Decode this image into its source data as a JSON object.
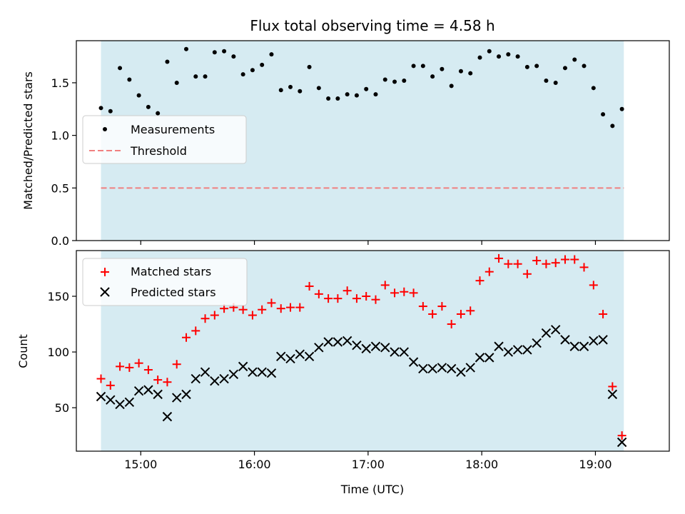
{
  "colors": {
    "shade": "#add8e6",
    "measurement": "#000000",
    "threshold": "#f08080",
    "matched": "#ff0000",
    "predicted": "#000000"
  },
  "chart_data": [
    {
      "type": "scatter",
      "title": "Flux total observing time = 4.58 h",
      "xlabel": "",
      "ylabel": "Matched/Predicted stars",
      "ylim": [
        0,
        1.9
      ],
      "yticks": [
        0.0,
        0.5,
        1.0,
        1.5
      ],
      "ytick_labels": [
        "0.0",
        "0.5",
        "1.0",
        "1.5"
      ],
      "shaded_span": [
        "14:39",
        "19:15"
      ],
      "legend_position": "center-left",
      "series": [
        {
          "name": "Measurements",
          "marker": "dot",
          "x": [
            "14:39",
            "14:44",
            "14:49",
            "14:54",
            "14:59",
            "15:04",
            "15:09",
            "15:14",
            "15:19",
            "15:24",
            "15:29",
            "15:34",
            "15:39",
            "15:44",
            "15:49",
            "15:54",
            "15:59",
            "16:04",
            "16:09",
            "16:14",
            "16:19",
            "16:24",
            "16:29",
            "16:34",
            "16:39",
            "16:44",
            "16:49",
            "16:54",
            "16:59",
            "17:04",
            "17:09",
            "17:14",
            "17:19",
            "17:24",
            "17:29",
            "17:34",
            "17:39",
            "17:44",
            "17:49",
            "17:54",
            "17:59",
            "18:04",
            "18:09",
            "18:14",
            "18:19",
            "18:24",
            "18:29",
            "18:34",
            "18:39",
            "18:44",
            "18:49",
            "18:54",
            "18:59",
            "19:04",
            "19:09",
            "19:14"
          ],
          "y": [
            1.26,
            1.23,
            1.64,
            1.53,
            1.38,
            1.27,
            1.21,
            1.7,
            1.5,
            1.82,
            1.56,
            1.56,
            1.79,
            1.8,
            1.75,
            1.58,
            1.62,
            1.67,
            1.77,
            1.43,
            1.46,
            1.42,
            1.65,
            1.45,
            1.35,
            1.35,
            1.39,
            1.38,
            1.44,
            1.39,
            1.53,
            1.51,
            1.52,
            1.66,
            1.66,
            1.56,
            1.63,
            1.47,
            1.61,
            1.59,
            1.74,
            1.8,
            1.75,
            1.77,
            1.75,
            1.65,
            1.66,
            1.52,
            1.5,
            1.64,
            1.72,
            1.66,
            1.45,
            1.2,
            1.09,
            1.25
          ]
        },
        {
          "name": "Threshold",
          "style": "dashed",
          "y": 0.5
        }
      ]
    },
    {
      "type": "scatter",
      "title": "",
      "xlabel": "Time (UTC)",
      "ylabel": "Count",
      "ylim": [
        11,
        191
      ],
      "yticks": [
        50,
        100,
        150
      ],
      "ytick_labels": [
        "50",
        "100",
        "150"
      ],
      "xticks": [
        "15:00",
        "16:00",
        "17:00",
        "18:00",
        "19:00"
      ],
      "xlim": [
        "14:26",
        "19:39"
      ],
      "legend_position": "upper-left",
      "series": [
        {
          "name": "Matched stars",
          "marker": "plus",
          "x": [
            "14:39",
            "14:44",
            "14:49",
            "14:54",
            "14:59",
            "15:04",
            "15:09",
            "15:14",
            "15:19",
            "15:24",
            "15:29",
            "15:34",
            "15:39",
            "15:44",
            "15:49",
            "15:54",
            "15:59",
            "16:04",
            "16:09",
            "16:14",
            "16:19",
            "16:24",
            "16:29",
            "16:34",
            "16:39",
            "16:44",
            "16:49",
            "16:54",
            "16:59",
            "17:04",
            "17:09",
            "17:14",
            "17:19",
            "17:24",
            "17:29",
            "17:34",
            "17:39",
            "17:44",
            "17:49",
            "17:54",
            "17:59",
            "18:04",
            "18:09",
            "18:14",
            "18:19",
            "18:24",
            "18:29",
            "18:34",
            "18:39",
            "18:44",
            "18:49",
            "18:54",
            "18:59",
            "19:04",
            "19:09",
            "19:14"
          ],
          "y": [
            76,
            70,
            87,
            86,
            90,
            84,
            75,
            73,
            89,
            113,
            119,
            130,
            133,
            139,
            140,
            138,
            133,
            138,
            144,
            139,
            140,
            140,
            159,
            152,
            148,
            148,
            155,
            148,
            150,
            147,
            160,
            153,
            154,
            153,
            141,
            134,
            141,
            125,
            134,
            137,
            164,
            172,
            184,
            179,
            179,
            170,
            182,
            179,
            180,
            183,
            183,
            176,
            160,
            134,
            69,
            25
          ]
        },
        {
          "name": "Predicted stars",
          "marker": "x",
          "x": [
            "14:39",
            "14:44",
            "14:49",
            "14:54",
            "14:59",
            "15:04",
            "15:09",
            "15:14",
            "15:19",
            "15:24",
            "15:29",
            "15:34",
            "15:39",
            "15:44",
            "15:49",
            "15:54",
            "15:59",
            "16:04",
            "16:09",
            "16:14",
            "16:19",
            "16:24",
            "16:29",
            "16:34",
            "16:39",
            "16:44",
            "16:49",
            "16:54",
            "16:59",
            "17:04",
            "17:09",
            "17:14",
            "17:19",
            "17:24",
            "17:29",
            "17:34",
            "17:39",
            "17:44",
            "17:49",
            "17:54",
            "17:59",
            "18:04",
            "18:09",
            "18:14",
            "18:19",
            "18:24",
            "18:29",
            "18:34",
            "18:39",
            "18:44",
            "18:49",
            "18:54",
            "18:59",
            "19:04",
            "19:09",
            "19:14"
          ],
          "y": [
            60,
            57,
            53,
            55,
            65,
            66,
            62,
            42,
            59,
            62,
            76,
            82,
            74,
            76,
            80,
            87,
            82,
            82,
            81,
            96,
            94,
            98,
            96,
            104,
            109,
            109,
            110,
            106,
            103,
            105,
            104,
            100,
            100,
            91,
            85,
            85,
            86,
            85,
            82,
            86,
            95,
            95,
            105,
            100,
            102,
            102,
            108,
            117,
            120,
            111,
            105,
            105,
            110,
            111,
            62,
            19
          ]
        }
      ]
    }
  ]
}
